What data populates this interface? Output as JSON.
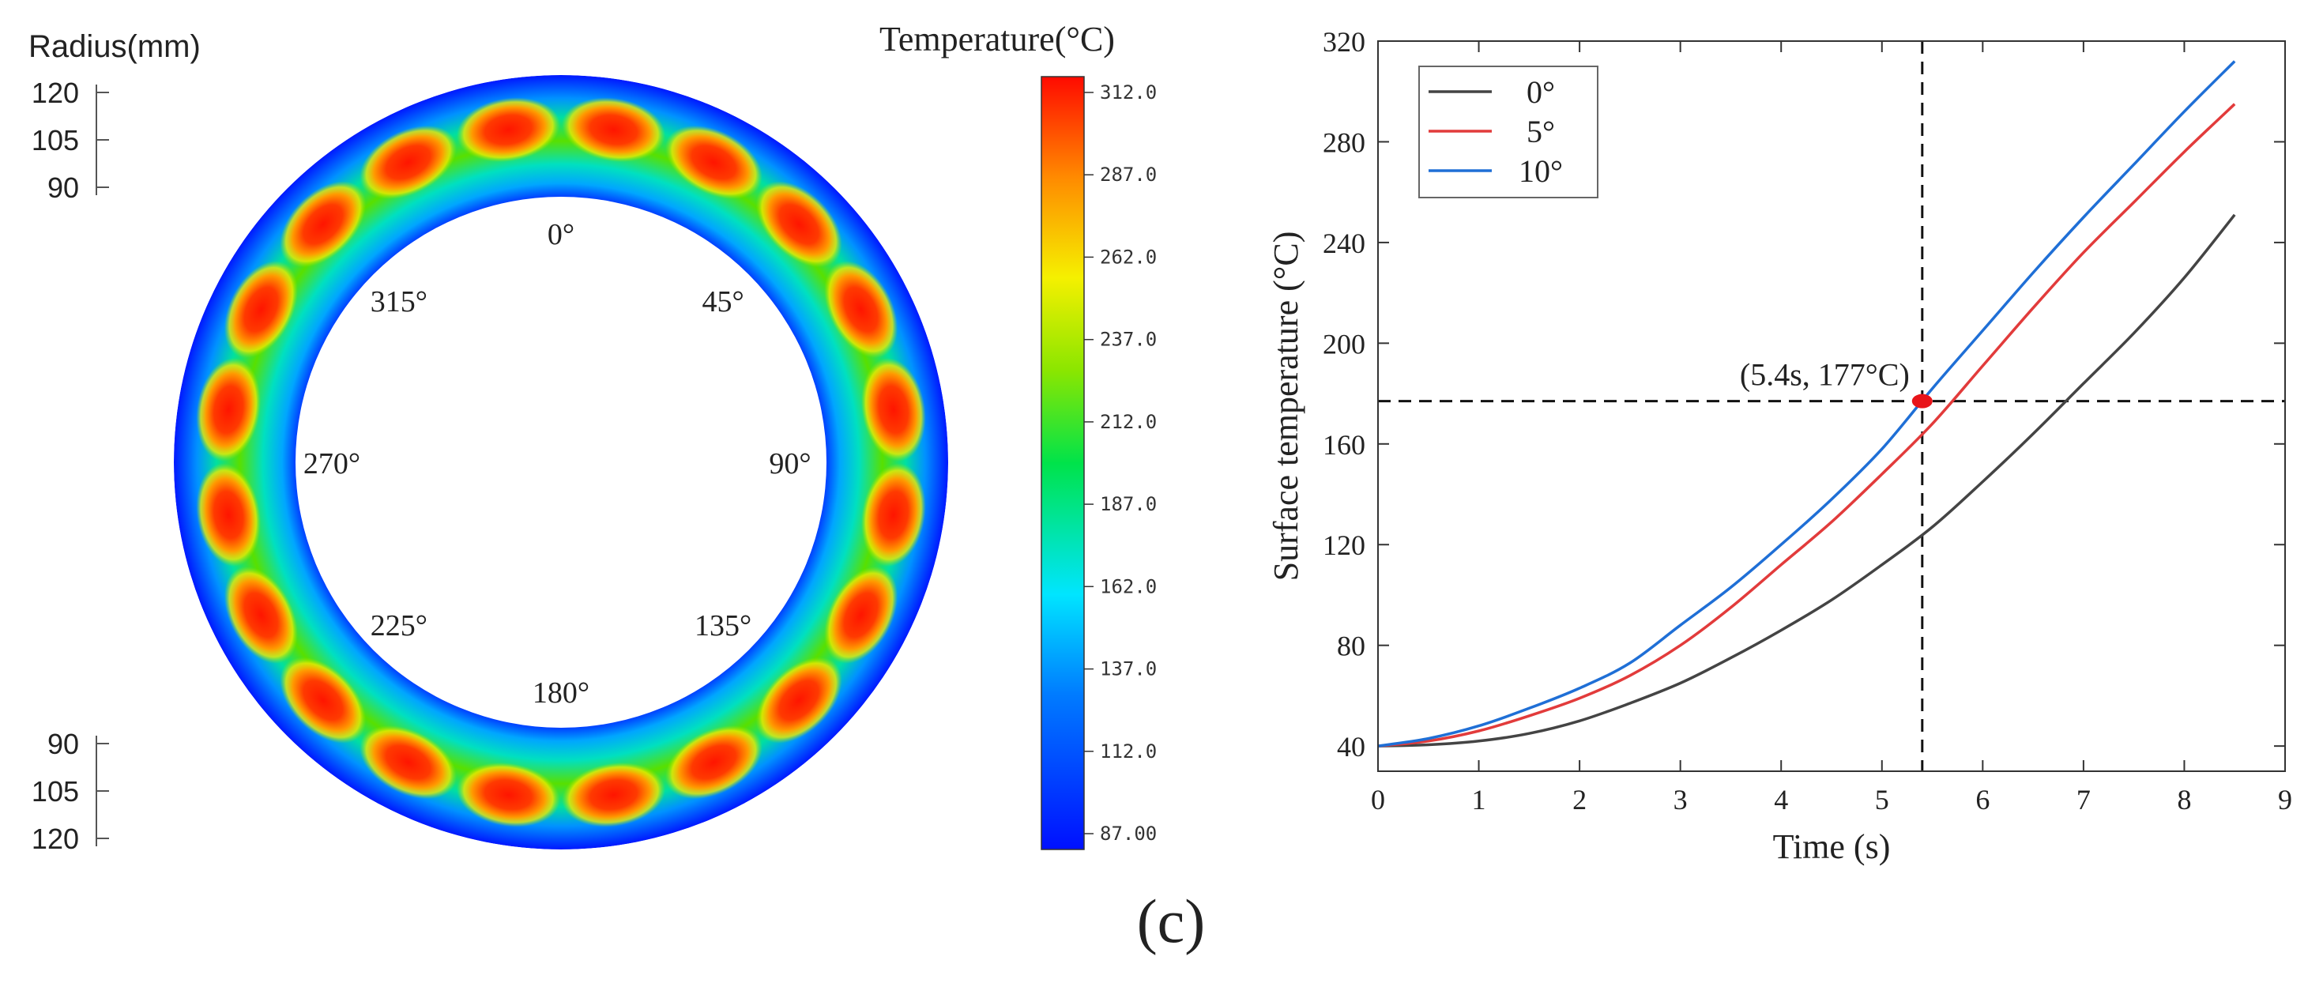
{
  "panel_label": "(c)",
  "colors": {
    "series_0": "#444444",
    "series_5": "#e23b3b",
    "series_10": "#1f6fd6",
    "marker": "#e8141a"
  },
  "contour": {
    "radius_label": "Radius(mm)",
    "radius_ticks_top": [
      "120",
      "105",
      "90"
    ],
    "radius_ticks_bottom": [
      "90",
      "105",
      "120"
    ],
    "angle_labels": [
      "0°",
      "45°",
      "90°",
      "135°",
      "180°",
      "225°",
      "270°",
      "315°"
    ],
    "hot_spot_count": 20,
    "colorbar": {
      "title": "Temperature(°C)",
      "ticks": [
        "312.0",
        "287.0",
        "262.0",
        "237.0",
        "212.0",
        "187.0",
        "162.0",
        "137.0",
        "112.0",
        "87.00"
      ],
      "min": 87,
      "max": 312
    }
  },
  "chart_data": {
    "type": "line",
    "xlabel": "Time (s)",
    "ylabel": "Surface temperature (°C)",
    "xlim": [
      0,
      9
    ],
    "ylim": [
      30,
      320
    ],
    "x_ticks": [
      "0",
      "1",
      "2",
      "3",
      "4",
      "5",
      "6",
      "7",
      "8",
      "9"
    ],
    "y_ticks": [
      "40",
      "80",
      "120",
      "160",
      "200",
      "240",
      "280",
      "320"
    ],
    "legend_position": "top-left",
    "series": [
      {
        "name": "0°",
        "x": [
          0,
          0.5,
          1,
          1.5,
          2,
          2.5,
          3,
          3.5,
          4,
          4.5,
          5,
          5.5,
          6,
          6.5,
          7,
          7.5,
          8,
          8.5
        ],
        "y": [
          40,
          40.5,
          42,
          45,
          50,
          57,
          65,
          75,
          86,
          98,
          112,
          127,
          145,
          164,
          184,
          204,
          226,
          251
        ]
      },
      {
        "name": "5°",
        "x": [
          0,
          0.5,
          1,
          1.5,
          2,
          2.5,
          3,
          3.5,
          4,
          4.5,
          5,
          5.5,
          6,
          6.5,
          7,
          7.5,
          8,
          8.5
        ],
        "y": [
          40,
          42,
          46,
          52,
          59,
          68,
          80,
          95,
          112,
          129,
          148,
          168,
          191,
          214,
          236,
          256,
          276,
          295
        ]
      },
      {
        "name": "10°",
        "x": [
          0,
          0.5,
          1,
          1.5,
          2,
          2.5,
          3,
          3.5,
          4,
          4.5,
          5,
          5.5,
          6,
          6.5,
          7,
          7.5,
          8,
          8.5
        ],
        "y": [
          40,
          43,
          48,
          55,
          63,
          73,
          88,
          103,
          120,
          138,
          158,
          182,
          205,
          228,
          250,
          271,
          292,
          312
        ]
      }
    ],
    "annotation": {
      "text": "(5.4s, 177°C)",
      "x": 5.4,
      "y": 177
    }
  }
}
